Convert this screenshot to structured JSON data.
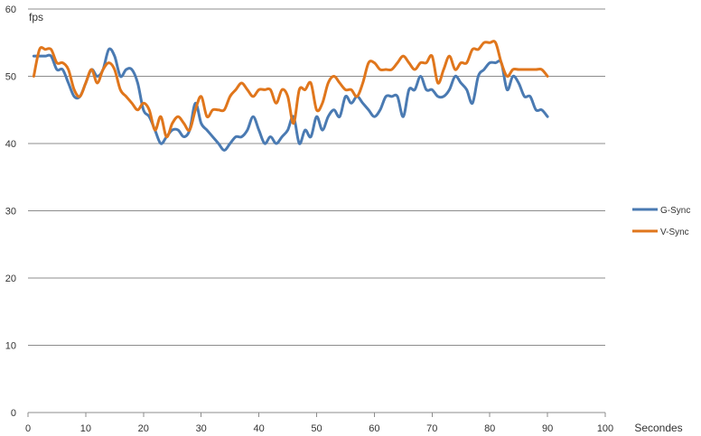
{
  "chart_data": {
    "type": "line",
    "ylabel": "fps",
    "xlabel": "Secondes",
    "xlim": [
      0,
      100
    ],
    "ylim": [
      0,
      60
    ],
    "xticks": [
      0,
      10,
      20,
      30,
      40,
      50,
      60,
      70,
      80,
      90,
      100
    ],
    "yticks": [
      0,
      10,
      20,
      30,
      40,
      50,
      60
    ],
    "grid": "horizontal",
    "legend": "right",
    "series": [
      {
        "name": "G-Sync",
        "color": "#4a7ab2",
        "x": [
          1,
          2,
          3,
          4,
          5,
          6,
          7,
          8,
          9,
          10,
          11,
          12,
          13,
          14,
          15,
          16,
          17,
          18,
          19,
          20,
          21,
          22,
          23,
          24,
          25,
          26,
          27,
          28,
          29,
          30,
          31,
          32,
          33,
          34,
          35,
          36,
          37,
          38,
          39,
          40,
          41,
          42,
          43,
          44,
          45,
          46,
          47,
          48,
          49,
          50,
          51,
          52,
          53,
          54,
          55,
          56,
          57,
          58,
          59,
          60,
          61,
          62,
          63,
          64,
          65,
          66,
          67,
          68,
          69,
          70,
          71,
          72,
          73,
          74,
          75,
          76,
          77,
          78,
          79,
          80,
          81,
          82,
          83,
          84,
          85,
          86,
          87,
          88,
          89,
          90
        ],
        "y": [
          53,
          53,
          53,
          53,
          51,
          51,
          49,
          47,
          47,
          49,
          51,
          50,
          51,
          54,
          53,
          50,
          51,
          51,
          49,
          45,
          44,
          42,
          40,
          41,
          42,
          42,
          41,
          42,
          46,
          43,
          42,
          41,
          40,
          39,
          40,
          41,
          41,
          42,
          44,
          42,
          40,
          41,
          40,
          41,
          42,
          44,
          40,
          42,
          41,
          44,
          42,
          44,
          45,
          44,
          47,
          46,
          47,
          46,
          45,
          44,
          45,
          47,
          47,
          47,
          44,
          48,
          48,
          50,
          48,
          48,
          47,
          47,
          48,
          50,
          49,
          48,
          46,
          50,
          51,
          52,
          52,
          52,
          48,
          50,
          49,
          47,
          47,
          45,
          45,
          44
        ]
      },
      {
        "name": "V-Sync",
        "color": "#e0761c",
        "x": [
          1,
          2,
          3,
          4,
          5,
          6,
          7,
          8,
          9,
          10,
          11,
          12,
          13,
          14,
          15,
          16,
          17,
          18,
          19,
          20,
          21,
          22,
          23,
          24,
          25,
          26,
          27,
          28,
          29,
          30,
          31,
          32,
          33,
          34,
          35,
          36,
          37,
          38,
          39,
          40,
          41,
          42,
          43,
          44,
          45,
          46,
          47,
          48,
          49,
          50,
          51,
          52,
          53,
          54,
          55,
          56,
          57,
          58,
          59,
          60,
          61,
          62,
          63,
          64,
          65,
          66,
          67,
          68,
          69,
          70,
          71,
          72,
          73,
          74,
          75,
          76,
          77,
          78,
          79,
          80,
          81,
          82,
          83,
          84,
          85,
          86,
          87,
          88,
          89,
          90
        ],
        "y": [
          50,
          54,
          54,
          54,
          52,
          52,
          51,
          48,
          47,
          49,
          51,
          49,
          51,
          52,
          51,
          48,
          47,
          46,
          45,
          46,
          45,
          42,
          44,
          41,
          43,
          44,
          43,
          42,
          45,
          47,
          44,
          45,
          45,
          45,
          47,
          48,
          49,
          48,
          47,
          48,
          48,
          48,
          46,
          48,
          47,
          43,
          48,
          48,
          49,
          45,
          46,
          49,
          50,
          49,
          48,
          48,
          47,
          49,
          52,
          52,
          51,
          51,
          51,
          52,
          53,
          52,
          51,
          52,
          52,
          53,
          49,
          51,
          53,
          51,
          52,
          52,
          54,
          54,
          55,
          55,
          55,
          52,
          50,
          51,
          51,
          51,
          51,
          51,
          51,
          50
        ]
      }
    ]
  }
}
